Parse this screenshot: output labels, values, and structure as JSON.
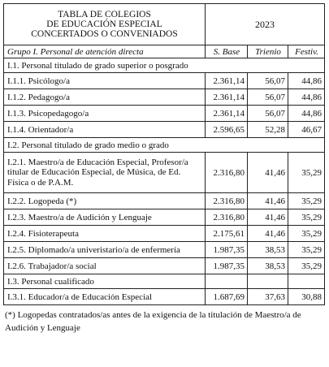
{
  "table": {
    "title_lines": [
      "TABLA DE COLEGIOS",
      "DE EDUCACIÓN ESPECIAL",
      "CONCERTADOS O CONVENIADOS"
    ],
    "year": "2023",
    "group_label": "Grupo I. Personal de atención directa",
    "col_headers": [
      "S. Base",
      "Trienio",
      "Festiv."
    ],
    "sections": [
      {
        "label": "I.1. Personal titulado de grado superior o posgrado",
        "rows": [
          {
            "label": "I.1.1. Psicólogo/a",
            "base": "2.361,14",
            "trienio": "56,07",
            "festiv": "44,86"
          },
          {
            "label": "I.1.2. Pedagogo/a",
            "base": "2.361,14",
            "trienio": "56,07",
            "festiv": "44,86"
          },
          {
            "label": "I.1.3. Psicopedagogo/a",
            "base": "2.361,14",
            "trienio": "56,07",
            "festiv": "44,86"
          },
          {
            "label": "I.1.4. Orientador/a",
            "base": "2.596,65",
            "trienio": "52,28",
            "festiv": "46,67"
          }
        ]
      },
      {
        "label": "I.2. Personal titulado de grado medio o grado",
        "rows": [
          {
            "label": "I.2.1. Maestro/a de Educación Especial, Profesor/a titular de Educación Especial, de Música, de Ed. Física o de P.A.M.",
            "base": "2.316,80",
            "trienio": "41,46",
            "festiv": "35,29"
          },
          {
            "label": "I.2.2. Logopeda (*)",
            "base": "2.316,80",
            "trienio": "41,46",
            "festiv": "35,29"
          },
          {
            "label": "I.2.3. Maestro/a de Audición y Lenguaje",
            "base": "2.316,80",
            "trienio": "41,46",
            "festiv": "35,29"
          },
          {
            "label": "I.2.4. Fisioterapeuta",
            "base": "2.175,61",
            "trienio": "41,46",
            "festiv": "35,29"
          },
          {
            "label": "I.2.5. Diplomado/a univeristario/a de enfermería",
            "base": "1.987,35",
            "trienio": "38,53",
            "festiv": "35,29"
          },
          {
            "label": "I.2.6. Trabajador/a social",
            "base": "1.987,35",
            "trienio": "38,53",
            "festiv": "35,29"
          }
        ]
      },
      {
        "label": "I.3. Personal cualificado",
        "rows": [
          {
            "label": "I.3.1. Educador/a de Educación Especial",
            "base": "1.687,69",
            "trienio": "37,63",
            "festiv": "30,88"
          }
        ]
      }
    ]
  },
  "footnote": "(*) Logopedas contratados/as antes de la exigencia de la titulación de Maestro/a de Audición y Lenguaje"
}
